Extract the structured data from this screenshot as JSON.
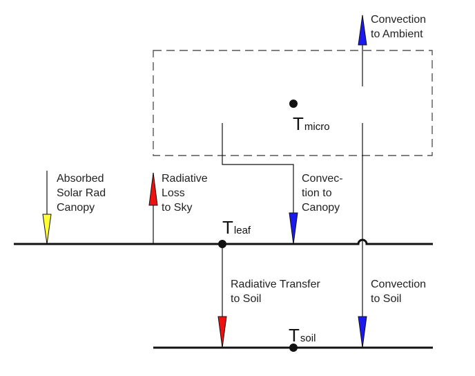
{
  "labels": {
    "convection_ambient": [
      "Convection",
      "to Ambient"
    ],
    "absorbed_solar": [
      "Absorbed",
      "Solar Rad",
      "Canopy"
    ],
    "radiative_loss": [
      "Radiative",
      "Loss",
      "to Sky"
    ],
    "convection_canopy": [
      "Convec-",
      "tion to",
      "Canopy"
    ],
    "radiative_transfer": [
      "Radiative Transfer",
      "to Soil"
    ],
    "convection_soil": [
      "Convection",
      "to Soil"
    ]
  },
  "nodes": {
    "micro": {
      "symbol": "T",
      "subscript": "micro"
    },
    "leaf": {
      "symbol": "T",
      "subscript": "leaf"
    },
    "soil": {
      "symbol": "T",
      "subscript": "soil"
    }
  },
  "colors": {
    "line": "#111111",
    "dashed_box": "#555555",
    "arrow_yellow": "#ffff33",
    "arrow_red": "#ee1111",
    "arrow_blue": "#1a1aee"
  }
}
